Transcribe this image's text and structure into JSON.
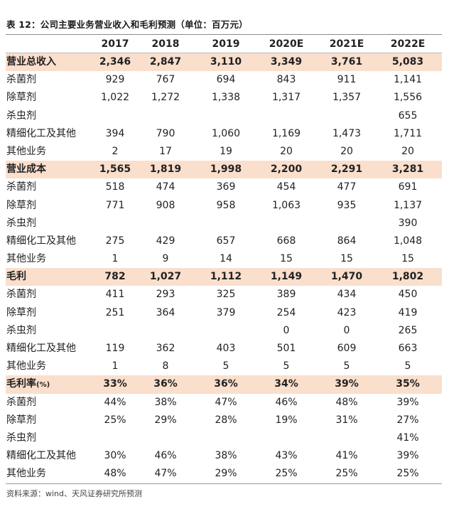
{
  "title": "表 12：公司主要业务营业收入和毛利预测（单位：百万元）",
  "source": "资料来源：wind、天风证券研究所预测",
  "columns": [
    "2017",
    "2018",
    "2019",
    "2020E",
    "2021E",
    "2022E"
  ],
  "rows": [
    {
      "label": "营业总收入",
      "section": true,
      "values": [
        "2,346",
        "2,847",
        "3,110",
        "3,349",
        "3,761",
        "5,083"
      ]
    },
    {
      "label": "杀菌剂",
      "values": [
        "929",
        "767",
        "694",
        "843",
        "911",
        "1,141"
      ]
    },
    {
      "label": "除草剂",
      "values": [
        "1,022",
        "1,272",
        "1,338",
        "1,317",
        "1,357",
        "1,556"
      ]
    },
    {
      "label": "杀虫剂",
      "values": [
        "",
        "",
        "",
        "",
        "",
        "655"
      ]
    },
    {
      "label": "精细化工及其他",
      "values": [
        "394",
        "790",
        "1,060",
        "1,169",
        "1,473",
        "1,711"
      ]
    },
    {
      "label": "其他业务",
      "values": [
        "2",
        "17",
        "19",
        "20",
        "20",
        "20"
      ]
    },
    {
      "label": "营业成本",
      "section": true,
      "values": [
        "1,565",
        "1,819",
        "1,998",
        "2,200",
        "2,291",
        "3,281"
      ]
    },
    {
      "label": "杀菌剂",
      "values": [
        "518",
        "474",
        "369",
        "454",
        "477",
        "691"
      ]
    },
    {
      "label": "除草剂",
      "values": [
        "771",
        "908",
        "958",
        "1,063",
        "935",
        "1,137"
      ]
    },
    {
      "label": "杀虫剂",
      "values": [
        "",
        "",
        "",
        "",
        "",
        "390"
      ]
    },
    {
      "label": "精细化工及其他",
      "values": [
        "275",
        "429",
        "657",
        "668",
        "864",
        "1,048"
      ]
    },
    {
      "label": "其他业务",
      "values": [
        "1",
        "9",
        "14",
        "15",
        "15",
        "15"
      ]
    },
    {
      "label": "毛利",
      "section": true,
      "values": [
        "782",
        "1,027",
        "1,112",
        "1,149",
        "1,470",
        "1,802"
      ]
    },
    {
      "label": "杀菌剂",
      "values": [
        "411",
        "293",
        "325",
        "389",
        "434",
        "450"
      ]
    },
    {
      "label": "除草剂",
      "values": [
        "251",
        "364",
        "379",
        "254",
        "423",
        "419"
      ]
    },
    {
      "label": "杀虫剂",
      "values": [
        "",
        "",
        "",
        "0",
        "0",
        "265"
      ]
    },
    {
      "label": "精细化工及其他",
      "values": [
        "119",
        "362",
        "403",
        "501",
        "609",
        "663"
      ]
    },
    {
      "label": "其他业务",
      "values": [
        "1",
        "8",
        "5",
        "5",
        "5",
        "5"
      ]
    },
    {
      "label": "毛利率",
      "suffix": "(%)",
      "section": true,
      "values": [
        "33%",
        "36%",
        "36%",
        "34%",
        "39%",
        "35%"
      ]
    },
    {
      "label": "杀菌剂",
      "values": [
        "44%",
        "38%",
        "47%",
        "46%",
        "48%",
        "39%"
      ]
    },
    {
      "label": "除草剂",
      "values": [
        "25%",
        "29%",
        "28%",
        "19%",
        "31%",
        "27%"
      ]
    },
    {
      "label": "杀虫剂",
      "values": [
        "",
        "",
        "",
        "",
        "",
        "41%"
      ]
    },
    {
      "label": "精细化工及其他",
      "values": [
        "30%",
        "46%",
        "38%",
        "43%",
        "41%",
        "39%"
      ]
    },
    {
      "label": "其他业务",
      "values": [
        "48%",
        "47%",
        "29%",
        "25%",
        "25%",
        "25%"
      ]
    }
  ]
}
